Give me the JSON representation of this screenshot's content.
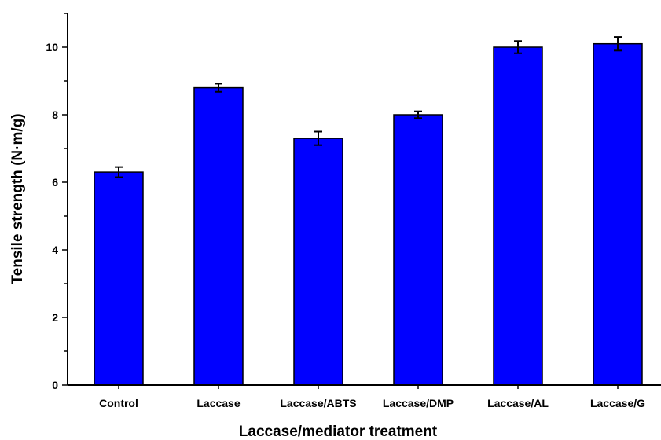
{
  "chart_data": {
    "type": "bar",
    "title": "",
    "xlabel": "Laccase/mediator treatment",
    "ylabel": "Tensile strength (N·m/g)",
    "categories": [
      "Control",
      "Laccase",
      "Laccase/ABTS",
      "Laccase/DMP",
      "Laccase/AL",
      "Laccase/G"
    ],
    "values": [
      6.3,
      8.8,
      7.3,
      8.0,
      10.0,
      10.1
    ],
    "errors": [
      0.15,
      0.12,
      0.2,
      0.1,
      0.18,
      0.2
    ],
    "ylim": [
      0,
      11
    ],
    "yticks": [
      "0",
      "2",
      "4",
      "6",
      "8",
      "10"
    ],
    "grid": false,
    "bar_color": "#0000ff"
  }
}
